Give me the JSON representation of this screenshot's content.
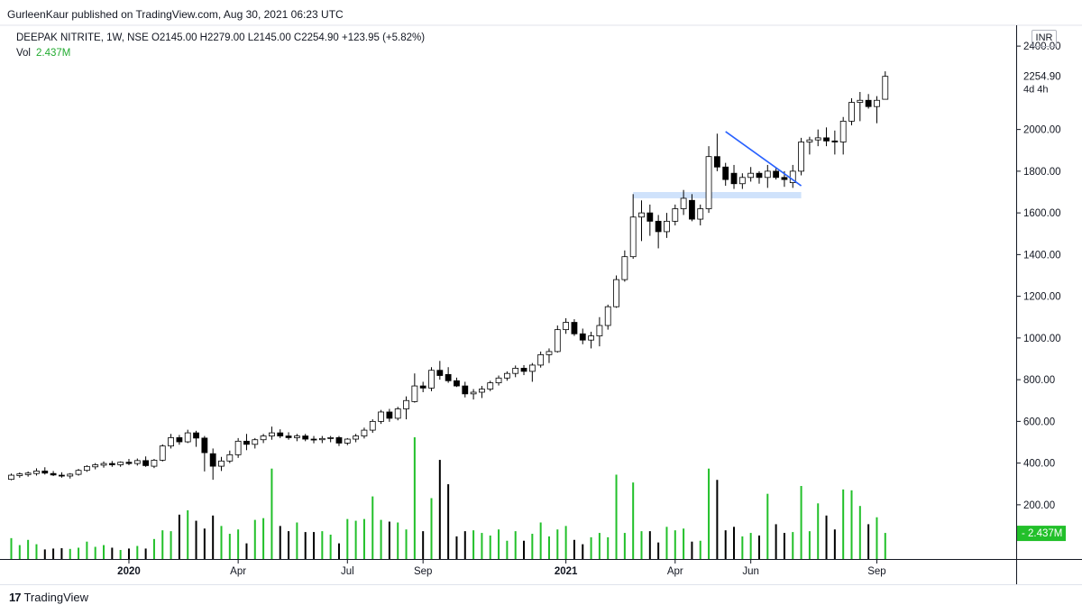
{
  "header": {
    "published": "GurleenKaur published on TradingView.com, Aug 30, 2021 06:23 UTC",
    "symbol_line": "DEEPAK NITRITE, 1W, NSE",
    "ohlc": "O2145.00  H2279.00  L2145.00  C2254.90  +123.95 (+5.82%)",
    "vol_label": "Vol",
    "vol_value": "2.437M",
    "currency": "INR"
  },
  "footer": {
    "brand": "TradingView",
    "brand_logo": "TV-logo-icon"
  },
  "colors": {
    "up_body": "#ffffff",
    "down_body": "#000000",
    "wick": "#000000",
    "vol_up": "#22c02a",
    "vol_down": "#000000",
    "trendline": "#2962ff",
    "zone": "#cfe2fb",
    "last_price_bg": "#000000",
    "vol_badge_bg": "#22c02a"
  },
  "chart_data": {
    "type": "candlestick",
    "timeframe": "weekly",
    "y_axis_ticks": [
      "2400.00",
      "2000.00",
      "1800.00",
      "1600.00",
      "1400.00",
      "1200.00",
      "1000.00",
      "800.00",
      "600.00",
      "400.00",
      "200.00"
    ],
    "y_tick_values": [
      2400,
      2000,
      1800,
      1600,
      1400,
      1200,
      1000,
      800,
      600,
      400,
      200
    ],
    "ylim": [
      -60,
      2500
    ],
    "x_axis_ticks": [
      {
        "label": "2020",
        "index": 14,
        "bold": true
      },
      {
        "label": "Apr",
        "index": 27,
        "bold": false
      },
      {
        "label": "Jul",
        "index": 40,
        "bold": false
      },
      {
        "label": "Sep",
        "index": 49,
        "bold": false
      },
      {
        "label": "2021",
        "index": 66,
        "bold": true
      },
      {
        "label": "Apr",
        "index": 79,
        "bold": false
      },
      {
        "label": "Jun",
        "index": 88,
        "bold": false
      },
      {
        "label": "Sep",
        "index": 103,
        "bold": false
      }
    ],
    "last_price": "2254.90",
    "countdown": "4d 4h",
    "volume_badge": "2.437M",
    "volume_scale_max": 700,
    "candles": [
      {
        "o": 322,
        "h": 350,
        "l": 318,
        "c": 342,
        "v": 120
      },
      {
        "o": 340,
        "h": 355,
        "l": 330,
        "c": 348,
        "v": 80
      },
      {
        "o": 345,
        "h": 360,
        "l": 335,
        "c": 352,
        "v": 110
      },
      {
        "o": 350,
        "h": 375,
        "l": 340,
        "c": 362,
        "v": 85
      },
      {
        "o": 362,
        "h": 380,
        "l": 345,
        "c": 352,
        "v": 55
      },
      {
        "o": 350,
        "h": 362,
        "l": 338,
        "c": 343,
        "v": 60
      },
      {
        "o": 342,
        "h": 356,
        "l": 330,
        "c": 338,
        "v": 62
      },
      {
        "o": 338,
        "h": 352,
        "l": 326,
        "c": 347,
        "v": 58
      },
      {
        "o": 346,
        "h": 372,
        "l": 340,
        "c": 365,
        "v": 65
      },
      {
        "o": 365,
        "h": 390,
        "l": 358,
        "c": 384,
        "v": 100
      },
      {
        "o": 382,
        "h": 400,
        "l": 370,
        "c": 392,
        "v": 70
      },
      {
        "o": 390,
        "h": 408,
        "l": 378,
        "c": 398,
        "v": 80
      },
      {
        "o": 398,
        "h": 410,
        "l": 382,
        "c": 392,
        "v": 65
      },
      {
        "o": 392,
        "h": 408,
        "l": 382,
        "c": 404,
        "v": 52
      },
      {
        "o": 404,
        "h": 420,
        "l": 390,
        "c": 398,
        "v": 60
      },
      {
        "o": 398,
        "h": 422,
        "l": 388,
        "c": 412,
        "v": 75
      },
      {
        "o": 412,
        "h": 432,
        "l": 382,
        "c": 388,
        "v": 60
      },
      {
        "o": 385,
        "h": 420,
        "l": 376,
        "c": 414,
        "v": 115
      },
      {
        "o": 414,
        "h": 490,
        "l": 408,
        "c": 482,
        "v": 165
      },
      {
        "o": 482,
        "h": 540,
        "l": 470,
        "c": 522,
        "v": 160
      },
      {
        "o": 522,
        "h": 535,
        "l": 488,
        "c": 502,
        "v": 255
      },
      {
        "o": 502,
        "h": 560,
        "l": 496,
        "c": 545,
        "v": 280
      },
      {
        "o": 545,
        "h": 555,
        "l": 478,
        "c": 520,
        "v": 220
      },
      {
        "o": 520,
        "h": 530,
        "l": 360,
        "c": 450,
        "v": 175
      },
      {
        "o": 445,
        "h": 470,
        "l": 320,
        "c": 385,
        "v": 250
      },
      {
        "o": 385,
        "h": 430,
        "l": 362,
        "c": 410,
        "v": 190
      },
      {
        "o": 410,
        "h": 460,
        "l": 400,
        "c": 440,
        "v": 145
      },
      {
        "o": 440,
        "h": 520,
        "l": 425,
        "c": 505,
        "v": 170
      },
      {
        "o": 505,
        "h": 540,
        "l": 462,
        "c": 490,
        "v": 90
      },
      {
        "o": 490,
        "h": 520,
        "l": 470,
        "c": 512,
        "v": 225
      },
      {
        "o": 512,
        "h": 540,
        "l": 496,
        "c": 530,
        "v": 235
      },
      {
        "o": 530,
        "h": 575,
        "l": 512,
        "c": 545,
        "v": 520
      },
      {
        "o": 545,
        "h": 562,
        "l": 520,
        "c": 530,
        "v": 190
      },
      {
        "o": 530,
        "h": 548,
        "l": 512,
        "c": 522,
        "v": 160
      },
      {
        "o": 522,
        "h": 540,
        "l": 505,
        "c": 530,
        "v": 210
      },
      {
        "o": 530,
        "h": 540,
        "l": 505,
        "c": 515,
        "v": 155
      },
      {
        "o": 515,
        "h": 530,
        "l": 495,
        "c": 512,
        "v": 155
      },
      {
        "o": 512,
        "h": 530,
        "l": 496,
        "c": 518,
        "v": 160
      },
      {
        "o": 518,
        "h": 530,
        "l": 500,
        "c": 522,
        "v": 140
      },
      {
        "o": 522,
        "h": 530,
        "l": 482,
        "c": 496,
        "v": 90
      },
      {
        "o": 496,
        "h": 520,
        "l": 486,
        "c": 515,
        "v": 230
      },
      {
        "o": 515,
        "h": 540,
        "l": 500,
        "c": 530,
        "v": 220
      },
      {
        "o": 530,
        "h": 570,
        "l": 518,
        "c": 558,
        "v": 230
      },
      {
        "o": 558,
        "h": 610,
        "l": 545,
        "c": 600,
        "v": 360
      },
      {
        "o": 600,
        "h": 655,
        "l": 588,
        "c": 645,
        "v": 225
      },
      {
        "o": 645,
        "h": 660,
        "l": 598,
        "c": 615,
        "v": 215
      },
      {
        "o": 615,
        "h": 670,
        "l": 605,
        "c": 660,
        "v": 210
      },
      {
        "o": 660,
        "h": 720,
        "l": 610,
        "c": 700,
        "v": 170
      },
      {
        "o": 695,
        "h": 830,
        "l": 690,
        "c": 770,
        "v": 700
      },
      {
        "o": 770,
        "h": 790,
        "l": 740,
        "c": 760,
        "v": 160
      },
      {
        "o": 760,
        "h": 860,
        "l": 745,
        "c": 845,
        "v": 350
      },
      {
        "o": 845,
        "h": 890,
        "l": 800,
        "c": 820,
        "v": 570
      },
      {
        "o": 825,
        "h": 860,
        "l": 785,
        "c": 795,
        "v": 430
      },
      {
        "o": 795,
        "h": 810,
        "l": 765,
        "c": 770,
        "v": 130
      },
      {
        "o": 770,
        "h": 790,
        "l": 715,
        "c": 732,
        "v": 160
      },
      {
        "o": 732,
        "h": 755,
        "l": 705,
        "c": 740,
        "v": 165
      },
      {
        "o": 740,
        "h": 770,
        "l": 712,
        "c": 755,
        "v": 150
      },
      {
        "o": 755,
        "h": 795,
        "l": 745,
        "c": 785,
        "v": 135
      },
      {
        "o": 785,
        "h": 820,
        "l": 772,
        "c": 808,
        "v": 170
      },
      {
        "o": 808,
        "h": 840,
        "l": 795,
        "c": 830,
        "v": 105
      },
      {
        "o": 830,
        "h": 868,
        "l": 812,
        "c": 855,
        "v": 160
      },
      {
        "o": 855,
        "h": 870,
        "l": 822,
        "c": 840,
        "v": 105
      },
      {
        "o": 840,
        "h": 880,
        "l": 790,
        "c": 870,
        "v": 145
      },
      {
        "o": 870,
        "h": 935,
        "l": 858,
        "c": 920,
        "v": 210
      },
      {
        "o": 920,
        "h": 950,
        "l": 880,
        "c": 935,
        "v": 130
      },
      {
        "o": 935,
        "h": 1060,
        "l": 930,
        "c": 1040,
        "v": 170
      },
      {
        "o": 1040,
        "h": 1095,
        "l": 1020,
        "c": 1075,
        "v": 190
      },
      {
        "o": 1075,
        "h": 1090,
        "l": 1010,
        "c": 1020,
        "v": 110
      },
      {
        "o": 1020,
        "h": 1045,
        "l": 970,
        "c": 990,
        "v": 85
      },
      {
        "o": 990,
        "h": 1030,
        "l": 950,
        "c": 1010,
        "v": 125
      },
      {
        "o": 1010,
        "h": 1100,
        "l": 960,
        "c": 1060,
        "v": 150
      },
      {
        "o": 1060,
        "h": 1160,
        "l": 1040,
        "c": 1150,
        "v": 125
      },
      {
        "o": 1150,
        "h": 1300,
        "l": 1145,
        "c": 1280,
        "v": 485
      },
      {
        "o": 1280,
        "h": 1420,
        "l": 1270,
        "c": 1390,
        "v": 150
      },
      {
        "o": 1390,
        "h": 1690,
        "l": 1380,
        "c": 1580,
        "v": 440
      },
      {
        "o": 1580,
        "h": 1660,
        "l": 1465,
        "c": 1600,
        "v": 160
      },
      {
        "o": 1600,
        "h": 1640,
        "l": 1490,
        "c": 1560,
        "v": 160
      },
      {
        "o": 1560,
        "h": 1590,
        "l": 1430,
        "c": 1510,
        "v": 95
      },
      {
        "o": 1510,
        "h": 1600,
        "l": 1480,
        "c": 1560,
        "v": 185
      },
      {
        "o": 1560,
        "h": 1640,
        "l": 1540,
        "c": 1620,
        "v": 165
      },
      {
        "o": 1620,
        "h": 1710,
        "l": 1590,
        "c": 1670,
        "v": 175
      },
      {
        "o": 1660,
        "h": 1690,
        "l": 1560,
        "c": 1570,
        "v": 100
      },
      {
        "o": 1570,
        "h": 1640,
        "l": 1540,
        "c": 1620,
        "v": 105
      },
      {
        "o": 1620,
        "h": 1920,
        "l": 1600,
        "c": 1870,
        "v": 520
      },
      {
        "o": 1870,
        "h": 1980,
        "l": 1800,
        "c": 1820,
        "v": 455
      },
      {
        "o": 1820,
        "h": 1840,
        "l": 1730,
        "c": 1760,
        "v": 165
      },
      {
        "o": 1790,
        "h": 1830,
        "l": 1715,
        "c": 1740,
        "v": 185
      },
      {
        "o": 1740,
        "h": 1790,
        "l": 1715,
        "c": 1770,
        "v": 130
      },
      {
        "o": 1770,
        "h": 1820,
        "l": 1750,
        "c": 1790,
        "v": 150
      },
      {
        "o": 1790,
        "h": 1800,
        "l": 1740,
        "c": 1770,
        "v": 135
      },
      {
        "o": 1770,
        "h": 1830,
        "l": 1720,
        "c": 1800,
        "v": 375
      },
      {
        "o": 1800,
        "h": 1815,
        "l": 1760,
        "c": 1770,
        "v": 200
      },
      {
        "o": 1770,
        "h": 1800,
        "l": 1725,
        "c": 1760,
        "v": 150
      },
      {
        "o": 1745,
        "h": 1830,
        "l": 1720,
        "c": 1800,
        "v": 155
      },
      {
        "o": 1800,
        "h": 1960,
        "l": 1780,
        "c": 1940,
        "v": 420
      },
      {
        "o": 1940,
        "h": 1965,
        "l": 1880,
        "c": 1950,
        "v": 160
      },
      {
        "o": 1950,
        "h": 2000,
        "l": 1920,
        "c": 1960,
        "v": 320
      },
      {
        "o": 1960,
        "h": 2010,
        "l": 1920,
        "c": 1945,
        "v": 250
      },
      {
        "o": 1945,
        "h": 1995,
        "l": 1880,
        "c": 1940,
        "v": 170
      },
      {
        "o": 1940,
        "h": 2060,
        "l": 1880,
        "c": 2040,
        "v": 400
      },
      {
        "o": 2040,
        "h": 2150,
        "l": 2020,
        "c": 2130,
        "v": 395
      },
      {
        "o": 2130,
        "h": 2180,
        "l": 2040,
        "c": 2140,
        "v": 305
      },
      {
        "o": 2140,
        "h": 2170,
        "l": 2100,
        "c": 2110,
        "v": 200
      },
      {
        "o": 2110,
        "h": 2160,
        "l": 2030,
        "c": 2140,
        "v": 240
      },
      {
        "o": 2145,
        "h": 2279,
        "l": 2145,
        "c": 2254.9,
        "v": 150
      }
    ],
    "annotations": [
      {
        "type": "trendline",
        "from": {
          "index": 85,
          "value": 1990
        },
        "to": {
          "index": 94,
          "value": 1730
        }
      },
      {
        "type": "zone",
        "from_index": 74,
        "to_index": 94,
        "low": 1670,
        "high": 1700
      }
    ]
  }
}
